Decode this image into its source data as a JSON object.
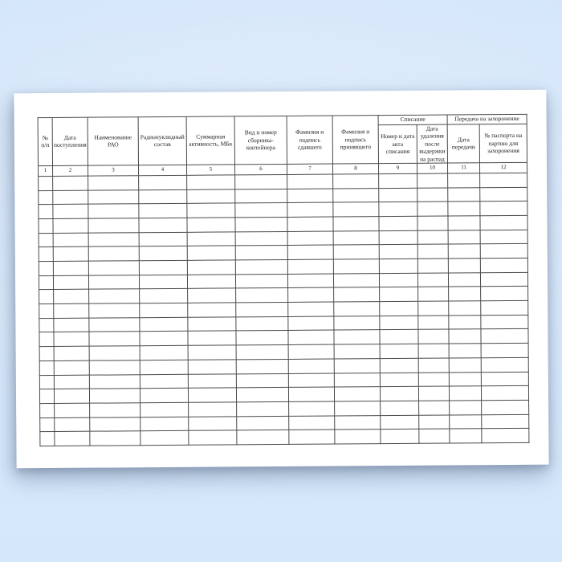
{
  "background": {
    "top_color": "#d4e6fa",
    "bottom_color": "#d5e8fb",
    "page_color": "#ffffff",
    "table_border_color": "#4a4a4a",
    "text_color": "#222222"
  },
  "document": {
    "table": {
      "groups": [
        {
          "label": "Списание",
          "colspan": 2
        },
        {
          "label": "Передача на захоронение",
          "colspan": 2
        }
      ],
      "columns": [
        {
          "number": "1",
          "title": "№ п/п"
        },
        {
          "number": "2",
          "title": "Дата поступления"
        },
        {
          "number": "3",
          "title": "Наименование РАО"
        },
        {
          "number": "4",
          "title": "Радионуклидный состав"
        },
        {
          "number": "5",
          "title": "Суммарная активность, МБк"
        },
        {
          "number": "6",
          "title": "Вид и номер сборника-контейнера"
        },
        {
          "number": "7",
          "title": "Фамилия и подпись сдавшего"
        },
        {
          "number": "8",
          "title": "Фамилия и подпись принявшего"
        },
        {
          "number": "9",
          "title": "Номер и дата акта списания"
        },
        {
          "number": "10",
          "title": "Дата удаления после выдержки на распад"
        },
        {
          "number": "11",
          "title": "Дата передачи"
        },
        {
          "number": "12",
          "title": "№ паспорта на партию для захоронения"
        }
      ],
      "empty_rows": 19
    }
  }
}
